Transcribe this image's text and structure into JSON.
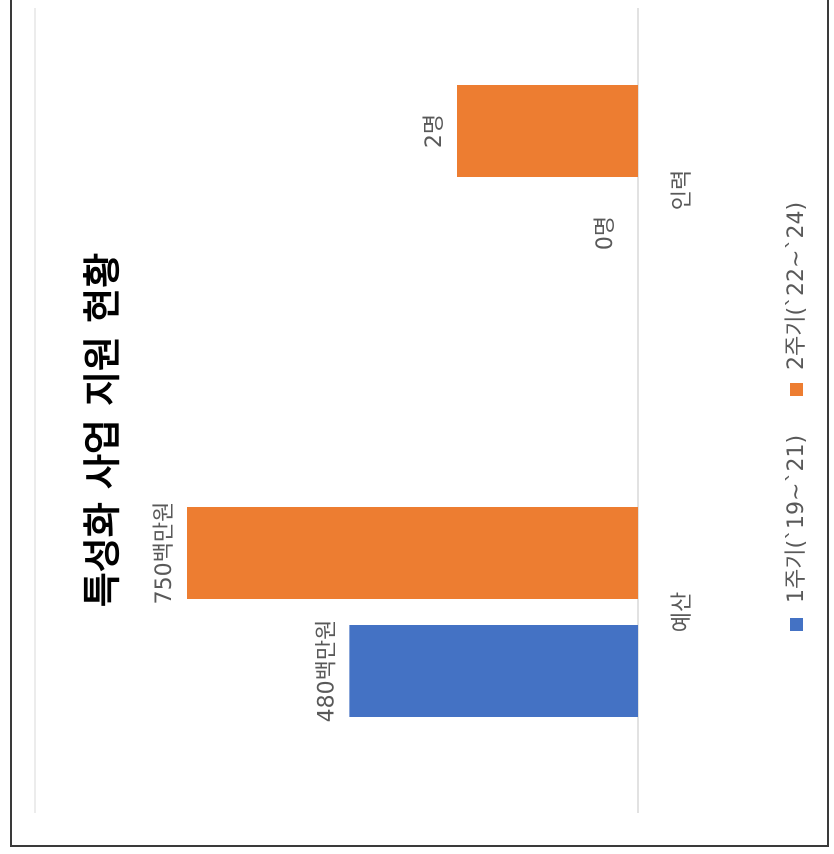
{
  "chart_data": {
    "type": "bar",
    "orientation": "rotated-90",
    "title": "특성화 사업 지원 현황",
    "categories": [
      "예산",
      "인력"
    ],
    "series": [
      {
        "name": "1주기(`19~`21)",
        "color": "#4472C4",
        "values": [
          480,
          0
        ],
        "labels": [
          "480백만원",
          ""
        ]
      },
      {
        "name": "2주기(`22~`24)",
        "color": "#ED7D31",
        "values": [
          750,
          2
        ],
        "labels": [
          "750백만원",
          "2명"
        ]
      }
    ],
    "zero_labels": [
      "",
      "0명"
    ],
    "legend_position": "bottom",
    "grid": false
  }
}
